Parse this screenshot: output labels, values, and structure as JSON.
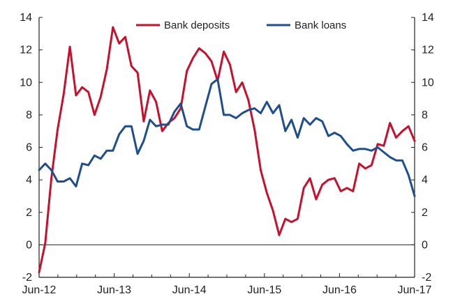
{
  "chart_data": {
    "type": "line",
    "title": "",
    "xlabel": "",
    "ylabel": "",
    "x_tick_labels": [
      "Jun-12",
      "Jun-13",
      "Jun-14",
      "Jun-15",
      "Jun-16",
      "Jun-17"
    ],
    "x_start": "Jun-12",
    "x_end": "Jun-17",
    "ylim": [
      -2,
      14
    ],
    "y_ticks": [
      -2,
      0,
      2,
      4,
      6,
      8,
      10,
      12,
      14
    ],
    "y_tick_labels": [
      "-2",
      "0",
      "2",
      "4",
      "6",
      "8",
      "10",
      "12",
      "14"
    ],
    "y_axis_right": true,
    "grid": false,
    "zero_line": true,
    "legend_position": "top-center",
    "series": [
      {
        "name": "Bank deposits",
        "color": "#c8102e",
        "values": [
          -1.7,
          0.1,
          4.1,
          7.1,
          9.3,
          12.2,
          9.2,
          9.7,
          9.4,
          8.0,
          9.1,
          10.8,
          13.4,
          12.4,
          12.8,
          11.0,
          10.6,
          7.6,
          9.5,
          8.8,
          7.0,
          7.5,
          7.8,
          8.4,
          10.7,
          11.5,
          12.1,
          11.8,
          11.3,
          10.1,
          11.9,
          11.1,
          9.4,
          10.0,
          8.9,
          7.1,
          4.6,
          3.2,
          2.1,
          0.6,
          1.6,
          1.4,
          1.6,
          3.5,
          4.1,
          2.8,
          3.7,
          4.0,
          4.1,
          3.3,
          3.5,
          3.3,
          5.0,
          4.7,
          4.9,
          6.2,
          6.1,
          7.5,
          6.6,
          7.0,
          7.3,
          6.4
        ]
      },
      {
        "name": "Bank loans",
        "color": "#1f4e8c",
        "values": [
          4.6,
          5.0,
          4.6,
          3.9,
          3.9,
          4.1,
          3.6,
          5.0,
          4.9,
          5.5,
          5.3,
          5.8,
          5.8,
          6.8,
          7.3,
          7.3,
          5.6,
          6.4,
          7.7,
          7.3,
          7.4,
          7.4,
          8.2,
          8.7,
          7.3,
          7.1,
          7.1,
          8.5,
          9.9,
          10.2,
          8.0,
          8.0,
          7.8,
          8.1,
          8.3,
          8.4,
          8.1,
          8.8,
          8.1,
          8.6,
          7.0,
          7.7,
          6.6,
          7.8,
          7.4,
          7.8,
          7.6,
          6.7,
          6.9,
          6.7,
          6.2,
          5.8,
          5.9,
          5.9,
          5.8,
          6.0,
          5.7,
          5.4,
          5.2,
          5.2,
          4.3,
          3.0
        ]
      }
    ]
  }
}
